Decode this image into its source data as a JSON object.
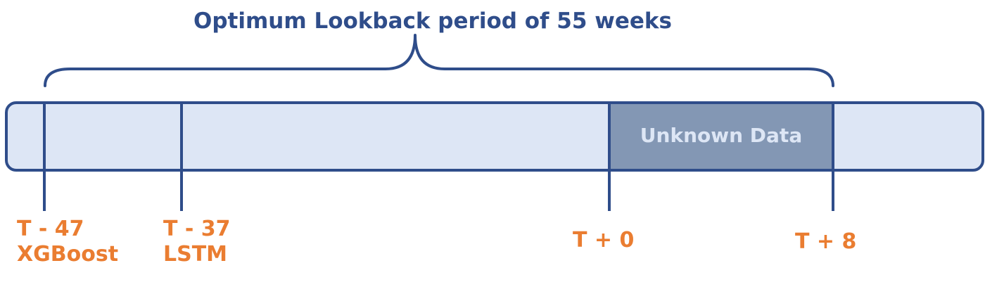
{
  "diagram": {
    "title": "Optimum Lookback period of 55 weeks",
    "region_label": "Unknown Data",
    "colors": {
      "title": "#2f4d8a",
      "lines": "#2f4d8a",
      "bar_fill": "#dde6f5",
      "unknown_fill": "#8397b4",
      "unknown_text": "#dde6f5",
      "labels": "#ea7d31"
    },
    "markers": [
      {
        "time": "T - 47",
        "model": "XGBoost"
      },
      {
        "time": "T - 37",
        "model": "LSTM"
      },
      {
        "time": "T + 0",
        "model": ""
      },
      {
        "time": "T + 8",
        "model": ""
      }
    ]
  }
}
